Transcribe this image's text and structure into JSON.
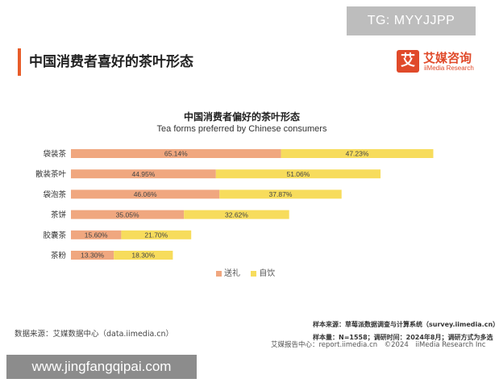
{
  "header": {
    "title": "中国消费者喜好的茶叶形态"
  },
  "watermarks": {
    "top_right": "TG: MYYJJPP",
    "bottom_left": "www.jingfangqipai.com"
  },
  "logo": {
    "mark": "艾",
    "cn": "艾媒咨询",
    "en": "iiMedia Research"
  },
  "chart_data": {
    "type": "bar",
    "orientation": "horizontal",
    "stacked": true,
    "title": "中国消费者偏好的茶叶形态",
    "subtitle": "Tea forms preferred by Chinese consumers",
    "categories": [
      "袋装茶",
      "散装茶叶",
      "袋泡茶",
      "茶饼",
      "胶囊茶",
      "茶粉"
    ],
    "series": [
      {
        "name": "送礼",
        "color": "#f0a77f",
        "values": [
          65.14,
          44.95,
          46.06,
          35.05,
          15.6,
          13.3
        ],
        "labels": [
          "65.14%",
          "44.95%",
          "46.06%",
          "35.05%",
          "15.60%",
          "13.30%"
        ]
      },
      {
        "name": "自饮",
        "color": "#f7dc5c",
        "values": [
          47.23,
          51.06,
          37.87,
          32.62,
          21.7,
          18.3
        ],
        "labels": [
          "47.23%",
          "51.06%",
          "37.87%",
          "32.62%",
          "21.70%",
          "18.30%"
        ]
      }
    ],
    "legend_position": "bottom",
    "grid": false
  },
  "footer": {
    "source_left": "数据来源：艾媒数据中心（data.iimedia.cn）",
    "sample_source": "样本来源：草莓派数据调查与计算系统（survey.iimedia.cn）",
    "sample_info": "样本量：N=1558；调研时间：2024年8月；调研方式为多选",
    "report_center": "艾媒报告中心：report.iimedia.cn　©2024　iiMedia Research Inc"
  }
}
